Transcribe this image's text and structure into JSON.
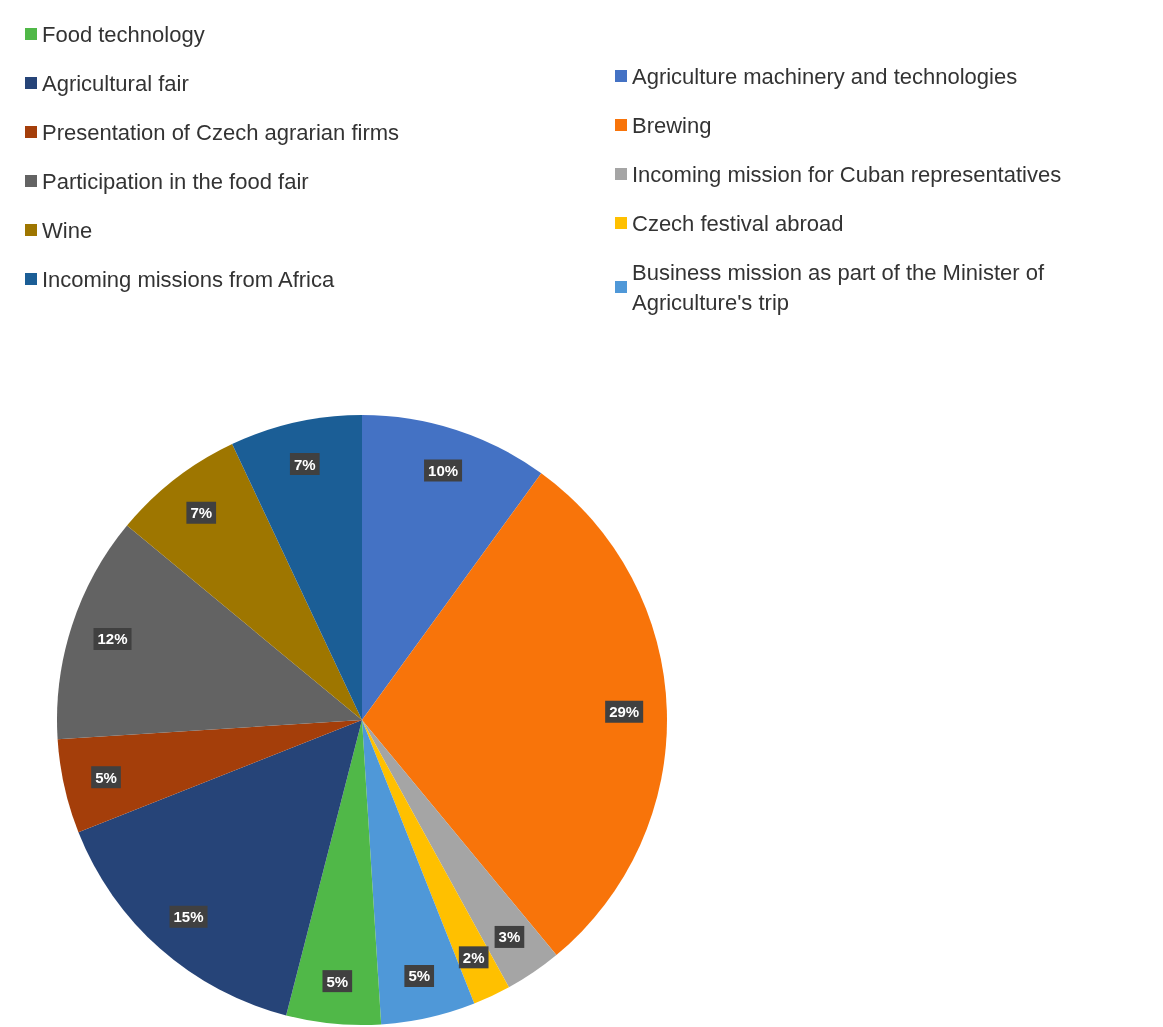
{
  "chart_data": {
    "type": "pie",
    "categories": [
      "Agriculture machinery and technologies",
      "Brewing",
      "Incoming mission for Cuban representatives",
      "Czech festival abroad",
      "Business mission as part of the Minister of Agriculture's trip",
      "Food technology",
      "Agricultural fair",
      "Presentation of Czech agrarian firms",
      "Participation in the food fair",
      "Wine",
      "Incoming missions from Africa"
    ],
    "values": [
      10,
      29,
      3,
      2,
      5,
      5,
      15,
      5,
      12,
      7,
      7
    ],
    "value_labels": [
      "10%",
      "29%",
      "3%",
      "2%",
      "5%",
      "5%",
      "15%",
      "5%",
      "12%",
      "7%",
      "7%"
    ],
    "colors": [
      "#4472c4",
      "#f8740a",
      "#a5a5a5",
      "#ffc000",
      "#4f98d8",
      "#50b848",
      "#264478",
      "#a43e0a",
      "#636363",
      "#9e7600",
      "#1b5e96"
    ],
    "legend": "top"
  }
}
